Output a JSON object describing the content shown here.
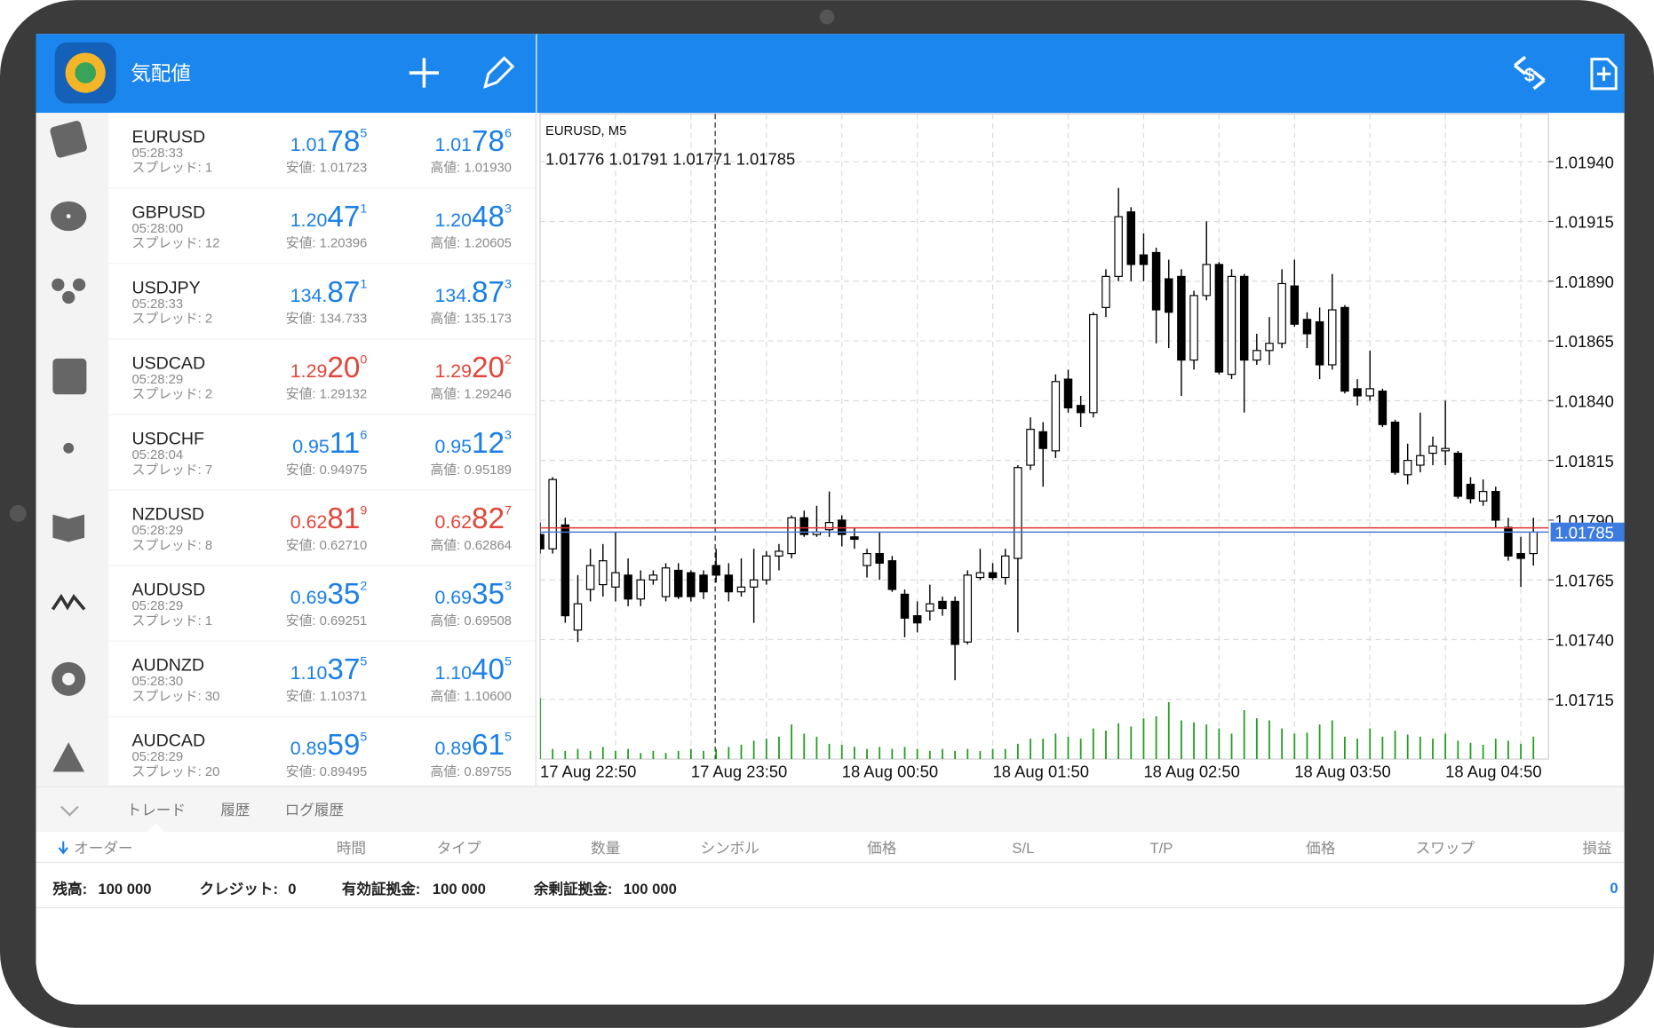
{
  "header": {
    "title": "気配値"
  },
  "quotes": [
    {
      "symbol": "EURUSD",
      "time": "05:28:33",
      "spread": "スプレッド: 1",
      "bid": [
        "1.01",
        "78",
        "5"
      ],
      "low": "安値: 1.01723",
      "ask": [
        "1.01",
        "78",
        "6"
      ],
      "high": "高値: 1.01930",
      "color": "#1a7fe8"
    },
    {
      "symbol": "GBPUSD",
      "time": "05:28:00",
      "spread": "スプレッド: 12",
      "bid": [
        "1.20",
        "47",
        "1"
      ],
      "low": "安値: 1.20396",
      "ask": [
        "1.20",
        "48",
        "3"
      ],
      "high": "高値: 1.20605",
      "color": "#1a7fe8"
    },
    {
      "symbol": "USDJPY",
      "time": "05:28:33",
      "spread": "スプレッド: 2",
      "bid": [
        "134.",
        "87",
        "1"
      ],
      "low": "安値: 134.733",
      "ask": [
        "134.",
        "87",
        "3"
      ],
      "high": "高値: 135.173",
      "color": "#1a7fe8"
    },
    {
      "symbol": "USDCAD",
      "time": "05:28:29",
      "spread": "スプレッド: 2",
      "bid": [
        "1.29",
        "20",
        "0"
      ],
      "low": "安値: 1.29132",
      "ask": [
        "1.29",
        "20",
        "2"
      ],
      "high": "高値: 1.29246",
      "color": "#e0463a"
    },
    {
      "symbol": "USDCHF",
      "time": "05:28:04",
      "spread": "スプレッド: 7",
      "bid": [
        "0.95",
        "11",
        "6"
      ],
      "low": "安値: 0.94975",
      "ask": [
        "0.95",
        "12",
        "3"
      ],
      "high": "高値: 0.95189",
      "color": "#1a7fe8"
    },
    {
      "symbol": "NZDUSD",
      "time": "05:28:29",
      "spread": "スプレッド: 8",
      "bid": [
        "0.62",
        "81",
        "9"
      ],
      "low": "安値: 0.62710",
      "ask": [
        "0.62",
        "82",
        "7"
      ],
      "high": "高値: 0.62864",
      "color": "#e0463a"
    },
    {
      "symbol": "AUDUSD",
      "time": "05:28:29",
      "spread": "スプレッド: 1",
      "bid": [
        "0.69",
        "35",
        "2"
      ],
      "low": "安値: 0.69251",
      "ask": [
        "0.69",
        "35",
        "3"
      ],
      "high": "高値: 0.69508",
      "color": "#1a7fe8"
    },
    {
      "symbol": "AUDNZD",
      "time": "05:28:30",
      "spread": "スプレッド: 30",
      "bid": [
        "1.10",
        "37",
        "5"
      ],
      "low": "安値: 1.10371",
      "ask": [
        "1.10",
        "40",
        "5"
      ],
      "high": "高値: 1.10600",
      "color": "#1a7fe8"
    },
    {
      "symbol": "AUDCAD",
      "time": "05:28:29",
      "spread": "スプレッド: 20",
      "bid": [
        "0.89",
        "59",
        "5"
      ],
      "low": "安値: 0.89495",
      "ask": [
        "0.89",
        "61",
        "5"
      ],
      "high": "高値: 0.89755",
      "color": "#1a7fe8"
    }
  ],
  "chart_data": {
    "type": "candlestick",
    "title": "EURUSD, M5",
    "ohlc_line": "1.01776 1.01791 1.01771 1.01785",
    "categories": [
      "17 Aug 22:50",
      null,
      null,
      null,
      null,
      null,
      null,
      null,
      null,
      null,
      null,
      null,
      "17 Aug 23:50",
      null,
      null,
      null,
      null,
      null,
      null,
      null,
      null,
      null,
      null,
      null,
      "18 Aug 00:50",
      null,
      null,
      null,
      null,
      null,
      null,
      null,
      null,
      null,
      null,
      null,
      "18 Aug 01:50",
      null,
      null,
      null,
      null,
      null,
      null,
      null,
      null,
      null,
      null,
      null,
      "18 Aug 02:50",
      null,
      null,
      null,
      null,
      null,
      null,
      null,
      null,
      null,
      null,
      null,
      "18 Aug 03:50",
      null,
      null,
      null,
      null,
      null,
      null,
      null,
      null,
      null,
      null,
      null,
      "18 Aug 04:50",
      null,
      null,
      null,
      null,
      null,
      null,
      null
    ],
    "open": [
      1.01784,
      1.01778,
      1.01788,
      1.01744,
      1.01761,
      1.01763,
      1.01762,
      1.01767,
      1.01757,
      1.01765,
      1.01758,
      1.01769,
      1.01768,
      1.01767,
      1.01771,
      1.01767,
      1.0176,
      1.01762,
      1.01765,
      1.01775,
      1.01776,
      1.01791,
      1.01784,
      1.01786,
      1.0179,
      1.01783,
      1.01771,
      1.01776,
      1.01773,
      1.01759,
      1.0175,
      1.01752,
      1.01756,
      1.01756,
      1.01739,
      1.01766,
      1.01768,
      1.01766,
      1.01774,
      1.01813,
      1.01827,
      1.01819,
      1.01849,
      1.01838,
      1.01835,
      1.01879,
      1.01892,
      1.01919,
      1.01901,
      1.01902,
      1.01891,
      1.01892,
      1.01857,
      1.01884,
      1.01897,
      1.01851,
      1.01892,
      1.01857,
      1.01861,
      1.01864,
      1.01888,
      1.01874,
      1.01873,
      1.01855,
      1.01879,
      1.01845,
      1.01842,
      1.01844,
      1.01831,
      1.01809,
      1.01813,
      1.01818,
      1.01819,
      1.01818,
      1.01805,
      1.01798,
      1.01802,
      1.01787,
      1.01776,
      1.01776
    ],
    "high": [
      1.01789,
      1.01808,
      1.01791,
      1.01767,
      1.01778,
      1.0178,
      1.01785,
      1.01774,
      1.01769,
      1.01769,
      1.01772,
      1.01772,
      1.01769,
      1.01769,
      1.01778,
      1.01772,
      1.01774,
      1.01778,
      1.01777,
      1.0178,
      1.01792,
      1.01794,
      1.01796,
      1.01802,
      1.01792,
      1.01787,
      1.01778,
      1.01785,
      1.01775,
      1.01761,
      1.01756,
      1.01763,
      1.01758,
      1.01758,
      1.01769,
      1.01778,
      1.01772,
      1.01778,
      1.01813,
      1.01833,
      1.01831,
      1.01851,
      1.01853,
      1.01842,
      1.01877,
      1.01895,
      1.01929,
      1.01921,
      1.0191,
      1.01904,
      1.01899,
      1.01895,
      1.01886,
      1.01915,
      1.01898,
      1.01895,
      1.01893,
      1.01868,
      1.01875,
      1.01895,
      1.01899,
      1.01877,
      1.01879,
      1.01893,
      1.0188,
      1.01849,
      1.01861,
      1.01845,
      1.01832,
      1.01822,
      1.01835,
      1.01825,
      1.0184,
      1.01819,
      1.01808,
      1.01807,
      1.01804,
      1.01791,
      1.01783,
      1.01791
    ],
    "low": [
      1.01776,
      1.01776,
      1.01747,
      1.01739,
      1.01756,
      1.01758,
      1.01756,
      1.01754,
      1.01754,
      1.01763,
      1.01756,
      1.01757,
      1.01756,
      1.01757,
      1.01764,
      1.01756,
      1.01758,
      1.01747,
      1.01763,
      1.01769,
      1.01774,
      1.01783,
      1.01783,
      1.01783,
      1.01779,
      1.01778,
      1.01766,
      1.01765,
      1.0176,
      1.01741,
      1.01743,
      1.01748,
      1.0175,
      1.01723,
      1.01738,
      1.01765,
      1.01765,
      1.01763,
      1.01743,
      1.01811,
      1.01804,
      1.01816,
      1.01835,
      1.01829,
      1.01833,
      1.01875,
      1.0189,
      1.0189,
      1.0189,
      1.01864,
      1.01862,
      1.01842,
      1.01853,
      1.01882,
      1.01851,
      1.01849,
      1.01835,
      1.01855,
      1.01855,
      1.01862,
      1.01871,
      1.01862,
      1.01849,
      1.01853,
      1.01843,
      1.01838,
      1.0184,
      1.01829,
      1.01809,
      1.01805,
      1.0181,
      1.01813,
      1.01813,
      1.01799,
      1.01797,
      1.01796,
      1.01787,
      1.01773,
      1.01762,
      1.01771
    ],
    "close": [
      1.01778,
      1.01807,
      1.0175,
      1.01755,
      1.01771,
      1.01773,
      1.01768,
      1.01757,
      1.01765,
      1.01767,
      1.0177,
      1.01758,
      1.01758,
      1.0176,
      1.01767,
      1.0176,
      1.01762,
      1.01765,
      1.01775,
      1.01777,
      1.01791,
      1.01784,
      1.01785,
      1.01789,
      1.01784,
      1.01782,
      1.01776,
      1.01772,
      1.01761,
      1.01749,
      1.01747,
      1.01755,
      1.01753,
      1.01738,
      1.01767,
      1.01768,
      1.01766,
      1.01775,
      1.01812,
      1.01828,
      1.0182,
      1.01848,
      1.01837,
      1.01835,
      1.01876,
      1.01892,
      1.01917,
      1.01897,
      1.01897,
      1.01878,
      1.01877,
      1.01857,
      1.01884,
      1.01897,
      1.01852,
      1.01892,
      1.01857,
      1.01861,
      1.01864,
      1.01889,
      1.01872,
      1.01868,
      1.01855,
      1.01878,
      1.01844,
      1.01842,
      1.01845,
      1.0183,
      1.0181,
      1.01815,
      1.01817,
      1.01821,
      1.0182,
      1.018,
      1.01799,
      1.01802,
      1.0179,
      1.01775,
      1.01774,
      1.01785
    ],
    "volume": [
      60,
      10,
      8,
      10,
      8,
      12,
      8,
      10,
      6,
      8,
      6,
      8,
      10,
      8,
      10,
      12,
      14,
      18,
      20,
      22,
      34,
      25,
      22,
      15,
      14,
      12,
      10,
      12,
      10,
      12,
      10,
      8,
      10,
      8,
      10,
      8,
      10,
      10,
      15,
      20,
      20,
      25,
      22,
      20,
      30,
      28,
      35,
      32,
      40,
      42,
      56,
      38,
      36,
      34,
      30,
      25,
      48,
      40,
      38,
      30,
      25,
      26,
      34,
      38,
      22,
      20,
      30,
      22,
      28,
      24,
      22,
      20,
      25,
      18,
      16,
      14,
      20,
      18,
      15,
      22
    ],
    "ylim": [
      1.0169,
      1.0196
    ],
    "yticks": [
      {
        "value": 1.0194,
        "label": "1.01940"
      },
      {
        "value": 1.01915,
        "label": "1.01915"
      },
      {
        "value": 1.0189,
        "label": "1.01890"
      },
      {
        "value": 1.01865,
        "label": "1.01865"
      },
      {
        "value": 1.0184,
        "label": "1.01840"
      },
      {
        "value": 1.01815,
        "label": "1.01815"
      },
      {
        "value": 1.0179,
        "label": "1.01790"
      },
      {
        "value": 1.01765,
        "label": "1.01765"
      },
      {
        "value": 1.0174,
        "label": "1.01740"
      },
      {
        "value": 1.01715,
        "label": "1.01715"
      }
    ],
    "price_tag": "1.01785",
    "grid": true,
    "up_color": "#ffffff",
    "down_color": "#000000",
    "volume_color": "#1f9e1f"
  },
  "terminal": {
    "tabs": [
      "トレード",
      "履歴",
      "ログ履歴"
    ],
    "columns": [
      "オーダー",
      "時間",
      "タイプ",
      "数量",
      "シンボル",
      "価格",
      "S/L",
      "T/P",
      "価格",
      "スワップ",
      "損益"
    ],
    "footer": [
      {
        "label": "残高:",
        "value": "100 000"
      },
      {
        "label": "クレジット:",
        "value": "0"
      },
      {
        "label": "有効証拠金:",
        "value": "100 000"
      },
      {
        "label": "余剰証拠金:",
        "value": "100 000"
      }
    ],
    "profit": "0"
  }
}
